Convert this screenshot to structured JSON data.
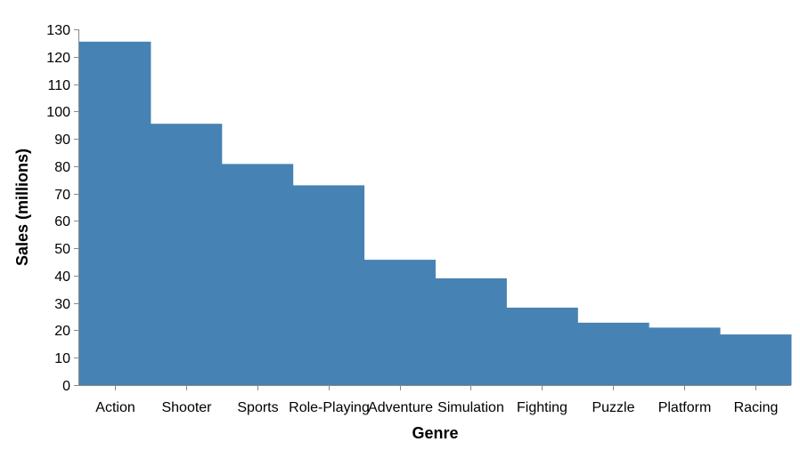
{
  "chart_data": {
    "type": "area",
    "title": "",
    "xlabel": "Genre",
    "ylabel": "Sales (millions)",
    "categories": [
      "Action",
      "Shooter",
      "Sports",
      "Role-Playing",
      "Adventure",
      "Simulation",
      "Fighting",
      "Puzzle",
      "Platform",
      "Racing"
    ],
    "values": [
      125.5,
      95.5,
      80.8,
      73.0,
      45.8,
      39.0,
      28.3,
      22.8,
      21.0,
      18.5
    ],
    "ylim": [
      0,
      130
    ],
    "yticks": [
      0,
      10,
      20,
      30,
      40,
      50,
      60,
      70,
      80,
      90,
      100,
      110,
      120,
      130
    ],
    "grid": false,
    "colors": {
      "fill": "#4682b4",
      "axis": "#888888"
    }
  }
}
